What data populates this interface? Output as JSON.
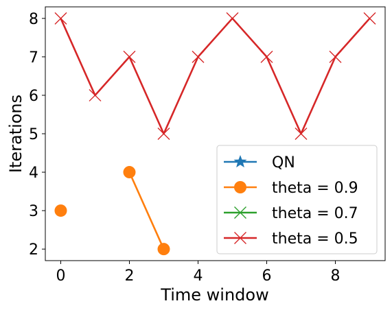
{
  "chart_data": {
    "type": "line",
    "xlabel": "Time window",
    "ylabel": "Iterations",
    "xlim": [
      -0.45,
      9.45
    ],
    "ylim": [
      1.7,
      8.3
    ],
    "xticks": [
      0,
      2,
      4,
      6,
      8
    ],
    "yticks": [
      2,
      3,
      4,
      5,
      6,
      7,
      8
    ],
    "grid": false,
    "legend_position": "lower-right",
    "series": [
      {
        "name": "QN",
        "color": "#1f77b4",
        "marker": "star",
        "points": []
      },
      {
        "name": "theta = 0.9",
        "color": "#ff7f0e",
        "marker": "circle",
        "points": [
          [
            0,
            3
          ],
          [
            2,
            4
          ],
          [
            3,
            2
          ]
        ],
        "segments": [
          [
            [
              0,
              3
            ]
          ],
          [
            [
              2,
              4
            ],
            [
              3,
              2
            ]
          ]
        ]
      },
      {
        "name": "theta = 0.7",
        "color": "#2ca02c",
        "marker": "x",
        "points": []
      },
      {
        "name": "theta = 0.5",
        "color": "#d62728",
        "marker": "x",
        "points": [
          [
            0,
            8
          ],
          [
            1,
            6
          ],
          [
            2,
            7
          ],
          [
            3,
            5
          ],
          [
            4,
            7
          ],
          [
            5,
            8
          ],
          [
            6,
            7
          ],
          [
            7,
            5
          ],
          [
            8,
            7
          ],
          [
            9,
            8
          ]
        ],
        "segments": [
          [
            [
              0,
              8
            ],
            [
              1,
              6
            ],
            [
              2,
              7
            ],
            [
              3,
              5
            ],
            [
              4,
              7
            ],
            [
              5,
              8
            ],
            [
              6,
              7
            ],
            [
              7,
              5
            ],
            [
              8,
              7
            ],
            [
              9,
              8
            ]
          ]
        ]
      }
    ]
  }
}
